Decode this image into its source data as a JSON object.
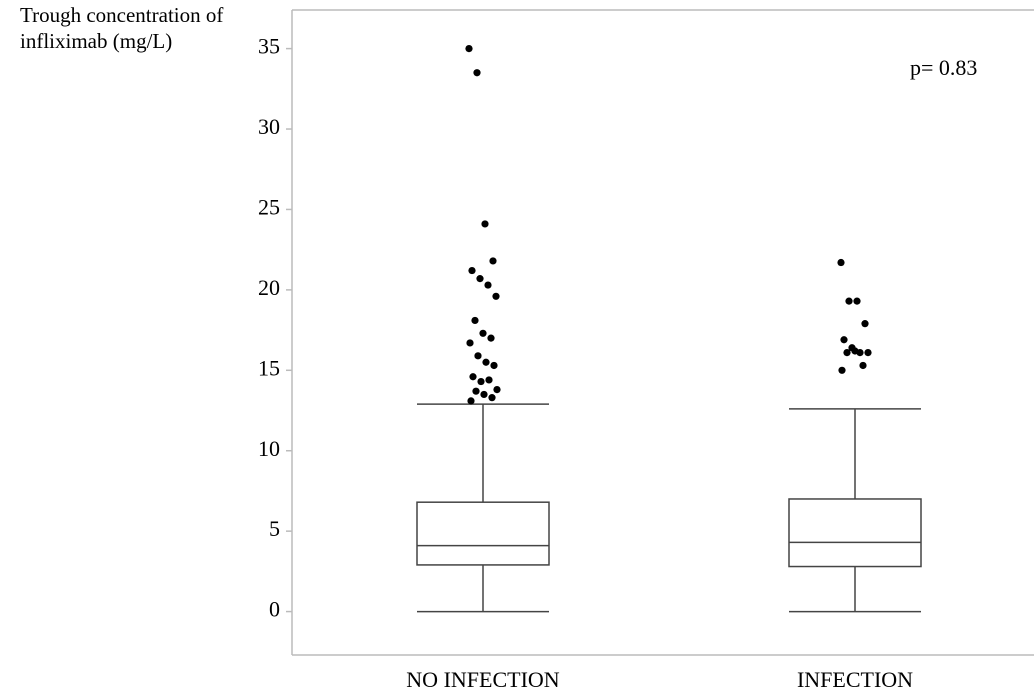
{
  "chart_data": {
    "type": "box",
    "y_label": "Trough concentration of infliximab (mg/L)",
    "annotation": "p= 0.83",
    "categories": [
      "NO INFECTION",
      "INFECTION"
    ],
    "boxes": [
      {
        "whisker_low": 0,
        "q1": 2.9,
        "median": 4.1,
        "q3": 6.8,
        "whisker_high": 12.9,
        "outliers": [
          35.0,
          33.5,
          24.1,
          21.8,
          21.2,
          20.7,
          20.3,
          19.6,
          18.1,
          17.3,
          17.0,
          16.7,
          15.9,
          15.5,
          15.3,
          14.6,
          14.3,
          14.4,
          13.8,
          13.7,
          13.5,
          13.3,
          13.1
        ]
      },
      {
        "whisker_low": 0,
        "q1": 2.8,
        "median": 4.3,
        "q3": 7.0,
        "whisker_high": 12.6,
        "outliers": [
          21.7,
          19.3,
          19.3,
          17.9,
          16.9,
          16.4,
          16.1,
          16.1,
          16.1,
          16.2,
          15.3,
          15.0
        ]
      }
    ],
    "box_color": "#444444",
    "point_color": "#000000",
    "ylim": [
      -2.7,
      37.4
    ],
    "yticks": [
      0,
      5,
      10,
      15,
      20,
      25,
      30,
      35
    ]
  }
}
